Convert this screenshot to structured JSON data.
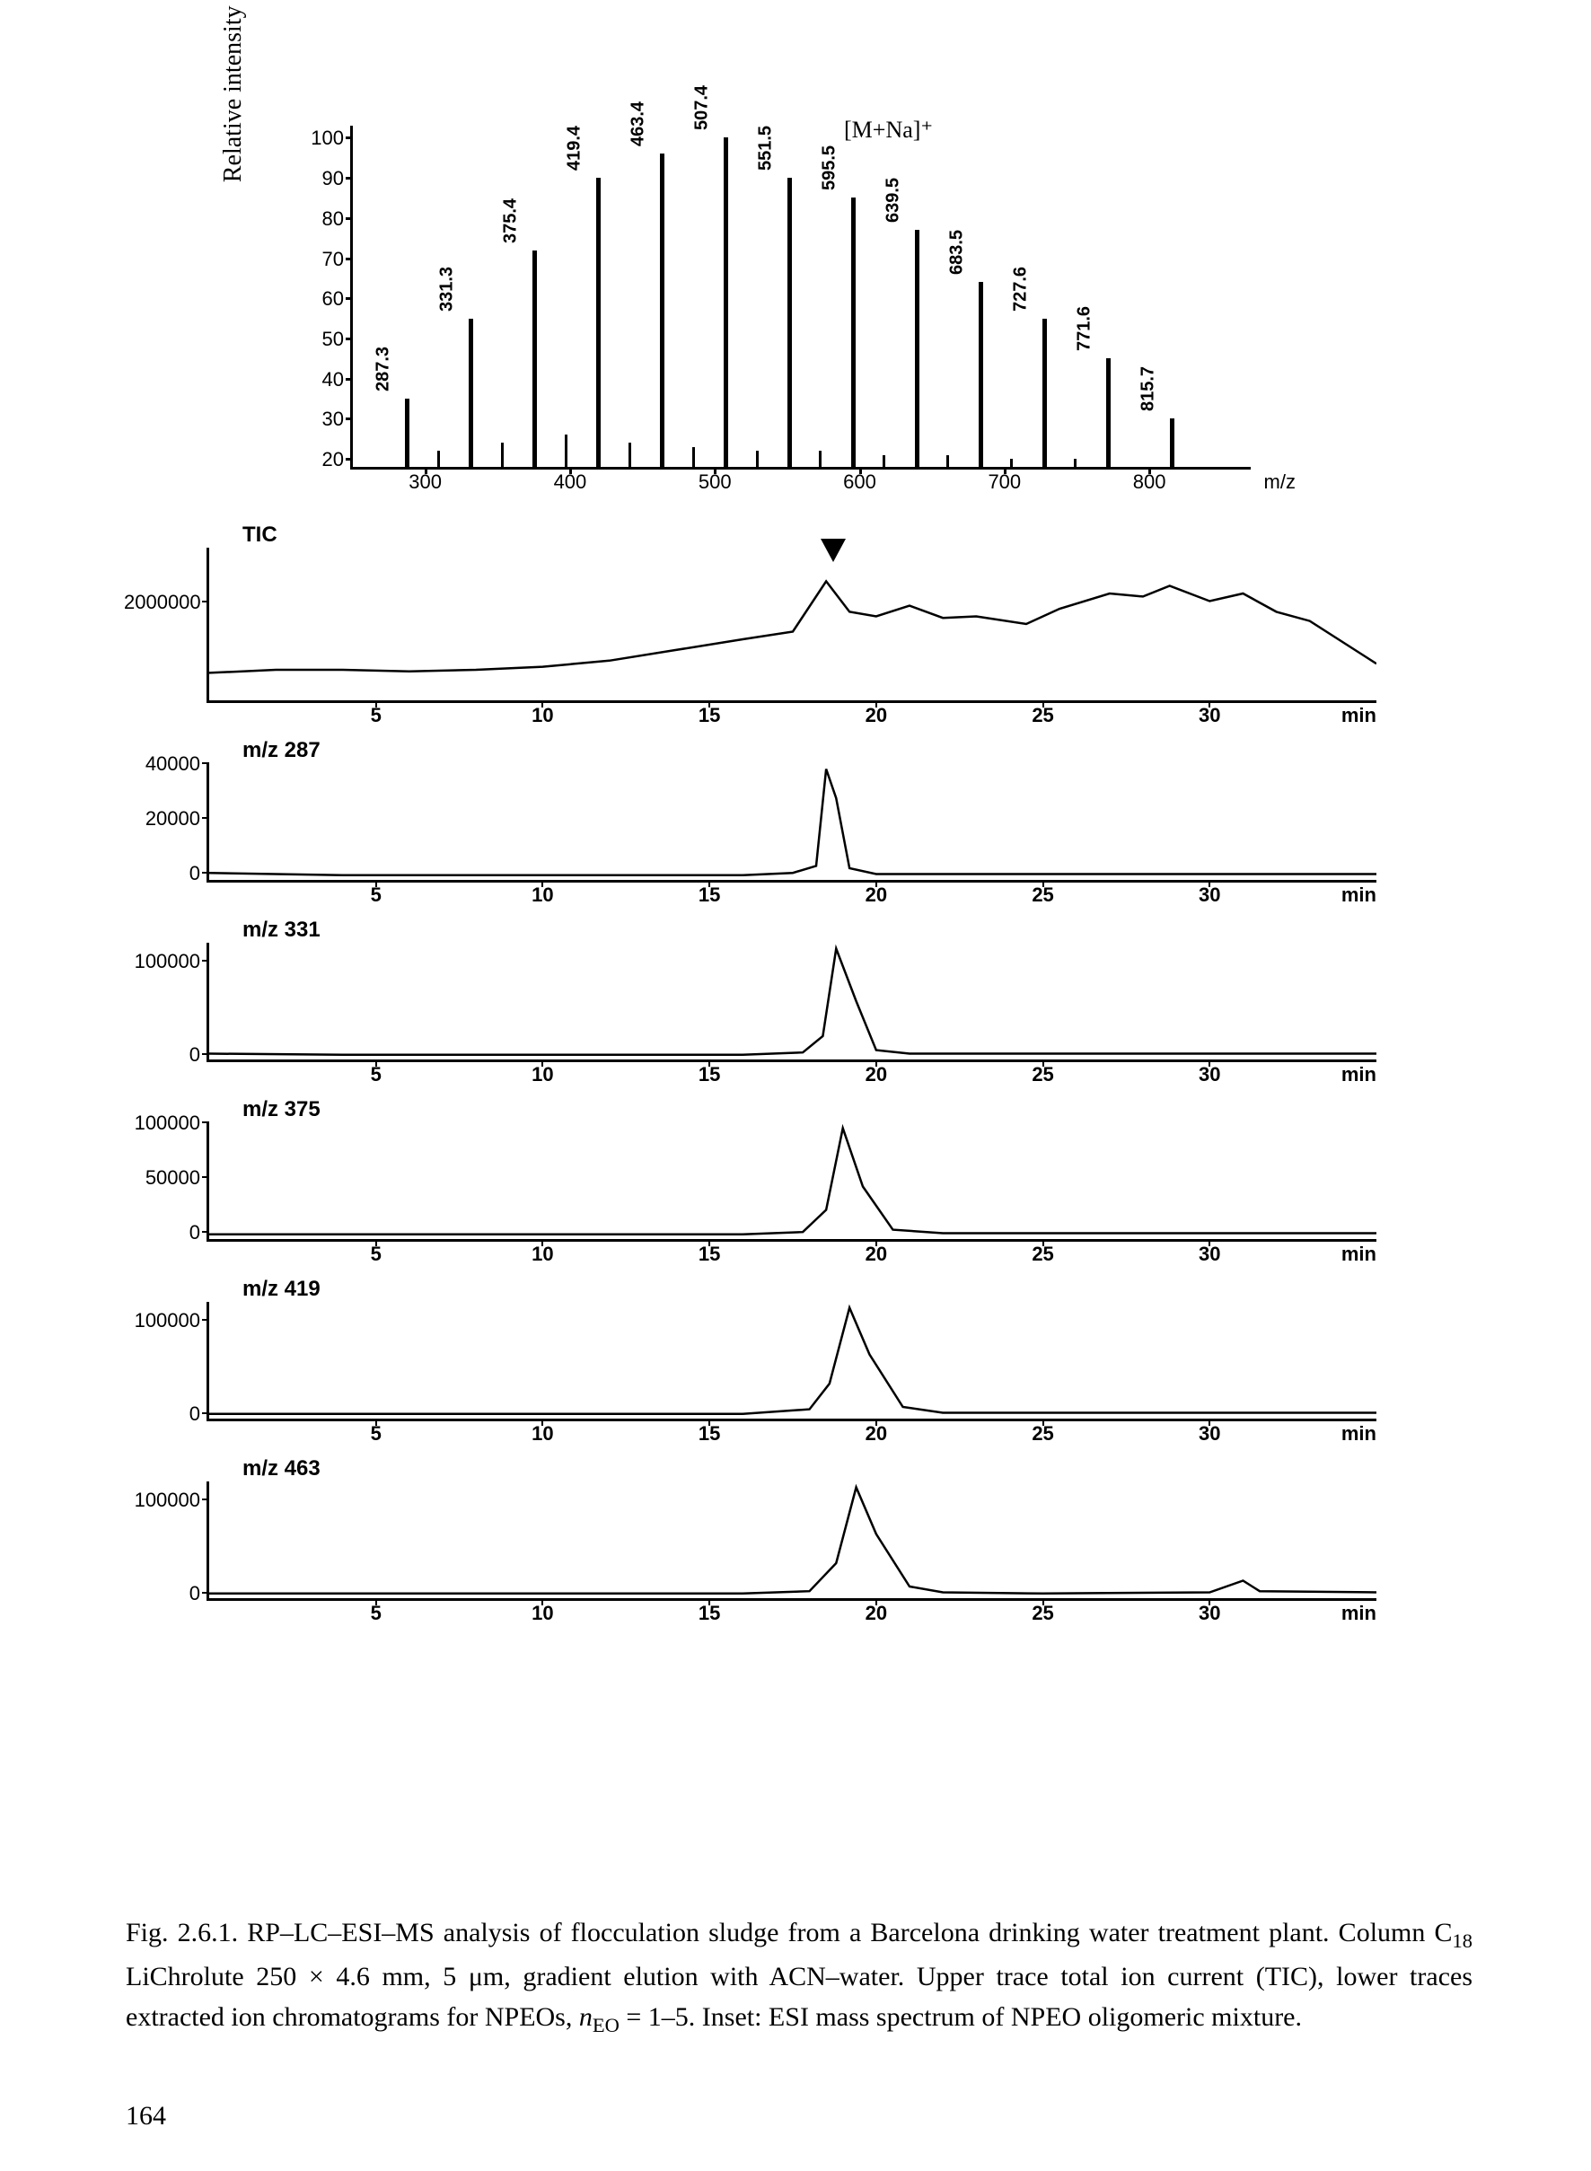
{
  "massSpectrum": {
    "ylabel": "Relative intensity (%)",
    "annotation": "[M+Na]⁺",
    "xlabel": "m/z",
    "yticks": [
      20,
      30,
      40,
      50,
      60,
      70,
      80,
      90,
      100
    ],
    "xticks": [
      300,
      400,
      500,
      600,
      700,
      800
    ],
    "xlim": [
      250,
      870
    ],
    "ylim": [
      18,
      103
    ],
    "peaks": [
      {
        "mz": 287.3,
        "intensity": 35,
        "label": "287.3"
      },
      {
        "mz": 331.3,
        "intensity": 55,
        "label": "331.3"
      },
      {
        "mz": 375.4,
        "intensity": 72,
        "label": "375.4"
      },
      {
        "mz": 419.4,
        "intensity": 90,
        "label": "419.4"
      },
      {
        "mz": 463.4,
        "intensity": 96,
        "label": "463.4"
      },
      {
        "mz": 507.4,
        "intensity": 100,
        "label": "507.4"
      },
      {
        "mz": 551.5,
        "intensity": 90,
        "label": "551.5"
      },
      {
        "mz": 595.5,
        "intensity": 85,
        "label": "595.5"
      },
      {
        "mz": 639.5,
        "intensity": 77,
        "label": "639.5"
      },
      {
        "mz": 683.5,
        "intensity": 64,
        "label": "683.5"
      },
      {
        "mz": 727.6,
        "intensity": 55,
        "label": "727.6"
      },
      {
        "mz": 771.6,
        "intensity": 45,
        "label": "771.6"
      },
      {
        "mz": 815.7,
        "intensity": 30,
        "label": "815.7"
      }
    ],
    "minorPeaks": [
      {
        "mz": 309,
        "intensity": 22
      },
      {
        "mz": 353,
        "intensity": 24
      },
      {
        "mz": 397,
        "intensity": 26
      },
      {
        "mz": 441,
        "intensity": 24
      },
      {
        "mz": 485,
        "intensity": 23
      },
      {
        "mz": 529,
        "intensity": 22
      },
      {
        "mz": 573,
        "intensity": 22
      },
      {
        "mz": 617,
        "intensity": 21
      },
      {
        "mz": 661,
        "intensity": 21
      },
      {
        "mz": 705,
        "intensity": 20
      },
      {
        "mz": 749,
        "intensity": 20
      }
    ]
  },
  "arrowTimeMin": 18.7,
  "chromatograms": [
    {
      "label": "TIC",
      "type": "tic",
      "yticks": [
        "2000000"
      ],
      "xticks": [
        5,
        10,
        15,
        20,
        25,
        30
      ],
      "xlabel": "min",
      "xlim": [
        0,
        35
      ],
      "trace": [
        [
          0,
          18
        ],
        [
          2,
          20
        ],
        [
          4,
          20
        ],
        [
          6,
          19
        ],
        [
          8,
          20
        ],
        [
          10,
          22
        ],
        [
          12,
          26
        ],
        [
          14,
          33
        ],
        [
          16,
          40
        ],
        [
          17.5,
          45
        ],
        [
          18.5,
          78
        ],
        [
          19.2,
          58
        ],
        [
          20,
          55
        ],
        [
          21,
          62
        ],
        [
          22,
          54
        ],
        [
          23,
          55
        ],
        [
          24.5,
          50
        ],
        [
          25.5,
          60
        ],
        [
          27,
          70
        ],
        [
          28,
          68
        ],
        [
          28.8,
          75
        ],
        [
          30,
          65
        ],
        [
          31,
          70
        ],
        [
          32,
          58
        ],
        [
          33,
          52
        ],
        [
          35,
          24
        ]
      ]
    },
    {
      "label": "m/z 287",
      "yticks": [
        "40000",
        "20000",
        "0"
      ],
      "xticks": [
        5,
        10,
        15,
        20,
        25,
        30
      ],
      "xlabel": "min",
      "xlim": [
        0,
        35
      ],
      "trace": [
        [
          0,
          6
        ],
        [
          4,
          4
        ],
        [
          8,
          4
        ],
        [
          12,
          4
        ],
        [
          16,
          4
        ],
        [
          17.5,
          6
        ],
        [
          18.2,
          12
        ],
        [
          18.5,
          95
        ],
        [
          18.8,
          70
        ],
        [
          19.2,
          10
        ],
        [
          20,
          5
        ],
        [
          25,
          5
        ],
        [
          30,
          5
        ],
        [
          35,
          5
        ]
      ]
    },
    {
      "label": "m/z 331",
      "yticks": [
        "100000",
        "0"
      ],
      "xticks": [
        5,
        10,
        15,
        20,
        25,
        30
      ],
      "xlabel": "min",
      "xlim": [
        0,
        35
      ],
      "trace": [
        [
          0,
          5
        ],
        [
          4,
          4
        ],
        [
          8,
          4
        ],
        [
          12,
          4
        ],
        [
          16,
          4
        ],
        [
          17.8,
          6
        ],
        [
          18.4,
          20
        ],
        [
          18.8,
          95
        ],
        [
          19.4,
          50
        ],
        [
          20,
          8
        ],
        [
          21,
          5
        ],
        [
          25,
          5
        ],
        [
          30,
          5
        ],
        [
          35,
          5
        ]
      ]
    },
    {
      "label": "m/z 375",
      "yticks": [
        "100000",
        "50000",
        "0"
      ],
      "xticks": [
        5,
        10,
        15,
        20,
        25,
        30
      ],
      "xlabel": "min",
      "xlim": [
        0,
        35
      ],
      "trace": [
        [
          0,
          4
        ],
        [
          4,
          4
        ],
        [
          8,
          4
        ],
        [
          12,
          4
        ],
        [
          16,
          4
        ],
        [
          17.8,
          6
        ],
        [
          18.5,
          25
        ],
        [
          19,
          95
        ],
        [
          19.6,
          45
        ],
        [
          20.5,
          8
        ],
        [
          22,
          5
        ],
        [
          25,
          5
        ],
        [
          30,
          5
        ],
        [
          35,
          5
        ]
      ]
    },
    {
      "label": "m/z 419",
      "yticks": [
        "100000",
        "0"
      ],
      "xticks": [
        5,
        10,
        15,
        20,
        25,
        30
      ],
      "xlabel": "min",
      "xlim": [
        0,
        35
      ],
      "trace": [
        [
          0,
          4
        ],
        [
          4,
          4
        ],
        [
          8,
          4
        ],
        [
          12,
          4
        ],
        [
          16,
          4
        ],
        [
          18,
          8
        ],
        [
          18.6,
          30
        ],
        [
          19.2,
          95
        ],
        [
          19.8,
          55
        ],
        [
          20.8,
          10
        ],
        [
          22,
          5
        ],
        [
          25,
          5
        ],
        [
          30,
          5
        ],
        [
          35,
          5
        ]
      ]
    },
    {
      "label": "m/z 463",
      "yticks": [
        "100000",
        "0"
      ],
      "xticks": [
        5,
        10,
        15,
        20,
        25,
        30
      ],
      "xlabel": "min",
      "xlim": [
        0,
        35
      ],
      "trace": [
        [
          0,
          4
        ],
        [
          4,
          4
        ],
        [
          8,
          4
        ],
        [
          12,
          4
        ],
        [
          16,
          4
        ],
        [
          18,
          6
        ],
        [
          18.8,
          30
        ],
        [
          19.4,
          95
        ],
        [
          20,
          55
        ],
        [
          21,
          10
        ],
        [
          22,
          5
        ],
        [
          25,
          4
        ],
        [
          30,
          5
        ],
        [
          31,
          15
        ],
        [
          31.5,
          6
        ],
        [
          35,
          5
        ]
      ]
    }
  ],
  "caption": {
    "figLabel": "Fig. 2.6.1.",
    "text1": " RP–LC–ESI–MS analysis of flocculation sludge from a Barcelona drinking water treatment plant. Column C",
    "sub1": "18",
    "text2": " LiChrolute 250 × 4.6 mm, 5 μm, gradient elution with ACN–water. Upper trace total ion current (TIC), lower traces extracted ion chromatograms for NPEOs, ",
    "iVar": "n",
    "sub2": "EO",
    "text3": " = 1–5. Inset: ESI mass spectrum of NPEO oligomeric mixture."
  },
  "pageNumber": "164"
}
